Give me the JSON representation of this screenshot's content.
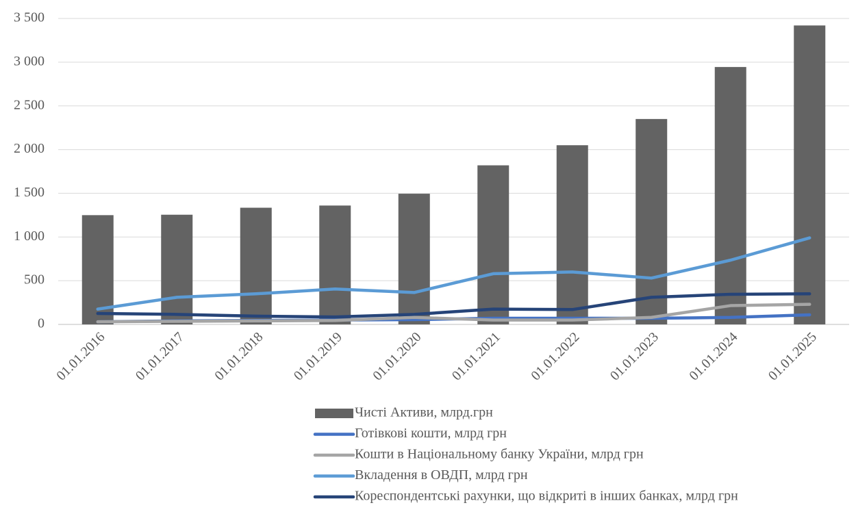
{
  "chart_data": {
    "type": "bar_line",
    "categories": [
      "01.01.2016",
      "01.01.2017",
      "01.01.2018",
      "01.01.2019",
      "01.01.2020",
      "01.01.2021",
      "01.01.2022",
      "01.01.2023",
      "01.01.2024",
      "01.01.2025"
    ],
    "series": [
      {
        "name": "Чисті Активи, млрд.грн",
        "type": "bar",
        "color": "#636363",
        "values": [
          1250,
          1255,
          1335,
          1360,
          1495,
          1820,
          2050,
          2350,
          2945,
          3420
        ]
      },
      {
        "name": "Готівкові кошти, млрд грн",
        "type": "line",
        "color": "#4472c4",
        "values": [
          30,
          40,
          45,
          50,
          55,
          70,
          70,
          70,
          80,
          110
        ]
      },
      {
        "name": "Кошти в Національному банку України, млрд грн",
        "type": "line",
        "color": "#a5a5a5",
        "values": [
          30,
          35,
          40,
          45,
          80,
          50,
          50,
          80,
          215,
          230
        ]
      },
      {
        "name": "Вкладення в ОВДП, млрд грн",
        "type": "line",
        "color": "#5b9bd5",
        "values": [
          175,
          310,
          350,
          405,
          365,
          580,
          600,
          530,
          735,
          990
        ]
      },
      {
        "name": "Кореспондентські рахунки, що відкриті в інших банках, млрд грн",
        "type": "line",
        "color": "#264478",
        "values": [
          125,
          115,
          95,
          85,
          115,
          175,
          170,
          310,
          345,
          350
        ]
      }
    ],
    "ylim": [
      0,
      3500
    ],
    "yticks": [
      0,
      {
        "value": 500,
        "label": "500"
      },
      {
        "value": 1000,
        "label": "1 000"
      },
      {
        "value": 1500,
        "label": "1 500"
      },
      {
        "value": 2000,
        "label": "2 000"
      },
      {
        "value": 2500,
        "label": "2 500"
      },
      {
        "value": 3000,
        "label": "3 000"
      },
      {
        "value": 3500,
        "label": "3 500"
      }
    ],
    "grid": true,
    "legend": "bottom"
  }
}
